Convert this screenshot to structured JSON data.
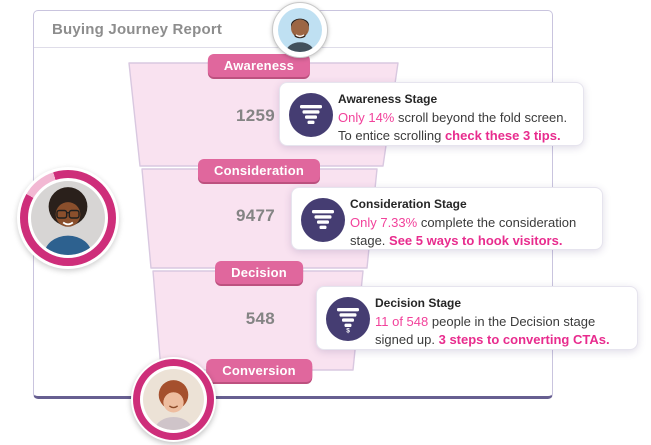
{
  "colors": {
    "accent-pink": "#ce2e7a",
    "badge-pink": "#e0679d",
    "badge-pink-shadow": "#bd517f",
    "funnel-fill": "#f9e2f0",
    "funnel-border": "#d9c8e0",
    "icon-indigo": "#453d72",
    "pink-text": "#f2429b",
    "link-pink": "#e82c8e",
    "text-dark": "#3b3b3b",
    "title-gray": "#8d8d8d",
    "number-gray": "#848484",
    "card-border": "#c9c4de",
    "card-border-bottom": "#675f91"
  },
  "report": {
    "title": "Buying Journey Report"
  },
  "funnel": {
    "stages": [
      {
        "label": "Awareness",
        "value": "1259"
      },
      {
        "label": "Consideration",
        "value": "9477"
      },
      {
        "label": "Decision",
        "value": "548"
      },
      {
        "label": "Conversion",
        "value": ""
      }
    ]
  },
  "tooltips": [
    {
      "icon": "funnel-icon",
      "title": "Awareness Stage",
      "segments": [
        {
          "text": "Only 14%",
          "style": "pink"
        },
        {
          "text": " scroll beyond the fold screen.",
          "style": "dark"
        },
        {
          "style": "br"
        },
        {
          "text": "To entice scrolling ",
          "style": "dark"
        },
        {
          "text": "check these 3 tips.",
          "style": "link"
        }
      ]
    },
    {
      "icon": "funnel-icon",
      "title": "Consideration Stage",
      "segments": [
        {
          "text": "Only 7.33%",
          "style": "pink"
        },
        {
          "text": " complete the consideration",
          "style": "dark"
        },
        {
          "style": "br"
        },
        {
          "text": "stage. ",
          "style": "dark"
        },
        {
          "text": "See 5 ways to hook visitors.",
          "style": "link"
        }
      ]
    },
    {
      "icon": "funnel-icon",
      "title": "Decision Stage",
      "segments": [
        {
          "text": "11 of 548",
          "style": "pink"
        },
        {
          "text": " people in the Decision stage",
          "style": "dark"
        },
        {
          "style": "br"
        },
        {
          "text": "signed up. ",
          "style": "dark"
        },
        {
          "text": "3 steps to converting CTAs.",
          "style": "link"
        }
      ]
    }
  ],
  "avatars": [
    {
      "name": "male-user-avatar"
    },
    {
      "name": "female-user-avatar"
    },
    {
      "name": "young-user-avatar"
    }
  ]
}
